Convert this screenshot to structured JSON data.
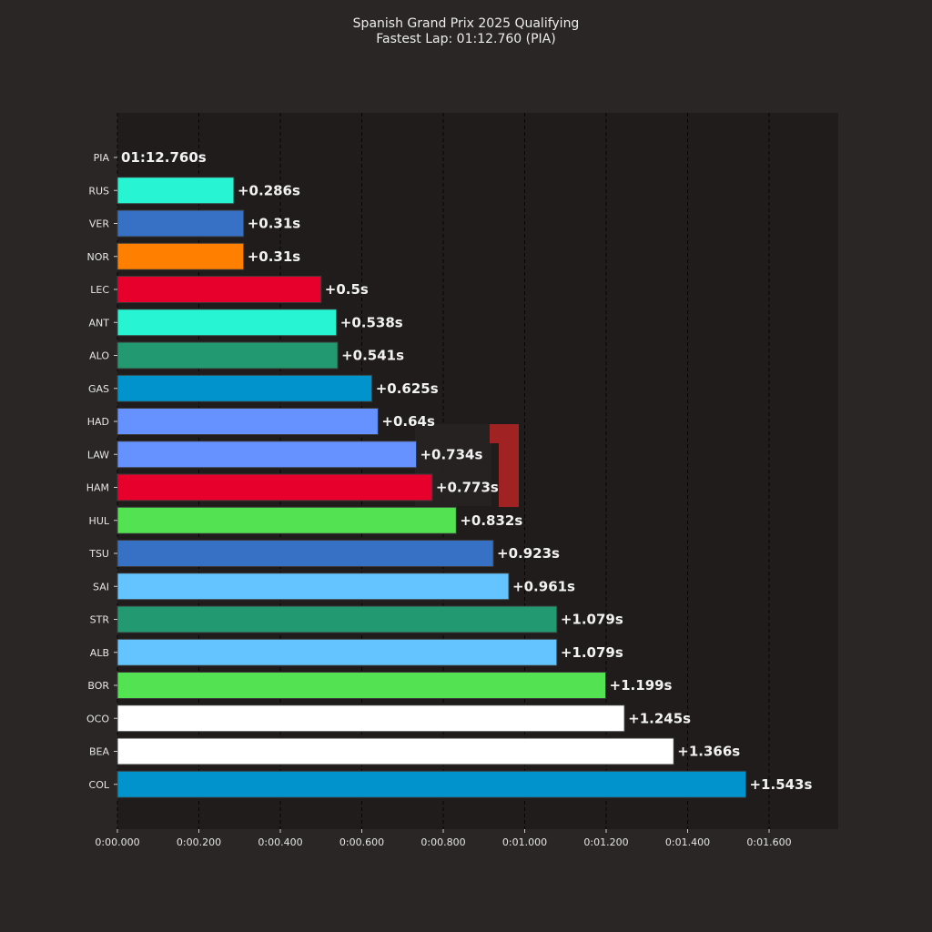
{
  "chart_data": {
    "type": "bar",
    "orientation": "horizontal",
    "title": "Spanish Grand Prix 2025 Qualifying",
    "subtitle": "Fastest Lap: 01:12.760 (PIA)",
    "xlim": [
      0,
      1.77
    ],
    "grid": "vertical dashed",
    "x_ticks": [
      {
        "value": 0.0,
        "label": "0:00.000"
      },
      {
        "value": 0.2,
        "label": "0:00.200"
      },
      {
        "value": 0.4,
        "label": "0:00.400"
      },
      {
        "value": 0.6,
        "label": "0:00.600"
      },
      {
        "value": 0.8,
        "label": "0:00.800"
      },
      {
        "value": 1.0,
        "label": "0:01.000"
      },
      {
        "value": 1.2,
        "label": "0:01.200"
      },
      {
        "value": 1.4,
        "label": "0:01.400"
      },
      {
        "value": 1.6,
        "label": "0:01.600"
      }
    ],
    "categories": [
      "PIA",
      "RUS",
      "VER",
      "NOR",
      "LEC",
      "ANT",
      "ALO",
      "GAS",
      "HAD",
      "LAW",
      "HAM",
      "HUL",
      "TSU",
      "SAI",
      "STR",
      "ALB",
      "BOR",
      "OCO",
      "BEA",
      "COL"
    ],
    "values": [
      0,
      0.286,
      0.31,
      0.31,
      0.5,
      0.538,
      0.541,
      0.625,
      0.64,
      0.734,
      0.773,
      0.832,
      0.923,
      0.961,
      1.079,
      1.079,
      1.199,
      1.245,
      1.366,
      1.543
    ],
    "labels": [
      "01:12.760s",
      "+0.286s",
      "+0.31s",
      "+0.31s",
      "+0.5s",
      "+0.538s",
      "+0.541s",
      "+0.625s",
      "+0.64s",
      "+0.734s",
      "+0.773s",
      "+0.832s",
      "+0.923s",
      "+0.961s",
      "+1.079s",
      "+1.079s",
      "+1.199s",
      "+1.245s",
      "+1.366s",
      "+1.543s"
    ],
    "colors": [
      "#ff8000",
      "#27f4d2",
      "#3671c6",
      "#ff8000",
      "#e8002d",
      "#27f4d2",
      "#229971",
      "#0093cc",
      "#6692ff",
      "#6692ff",
      "#e8002d",
      "#52e252",
      "#3671c6",
      "#64c4ff",
      "#229971",
      "#64c4ff",
      "#52e252",
      "#ffffff",
      "#ffffff",
      "#0093cc"
    ]
  }
}
